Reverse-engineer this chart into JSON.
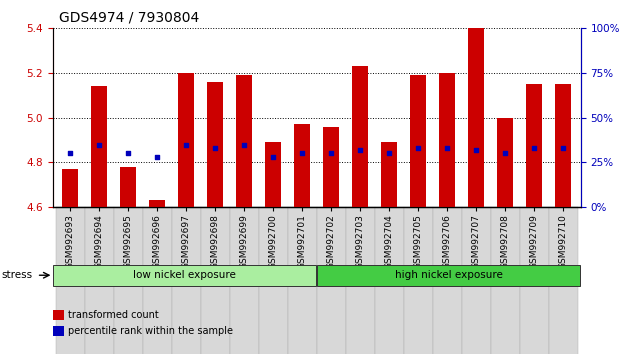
{
  "title": "GDS4974 / 7930804",
  "samples": [
    "GSM992693",
    "GSM992694",
    "GSM992695",
    "GSM992696",
    "GSM992697",
    "GSM992698",
    "GSM992699",
    "GSM992700",
    "GSM992701",
    "GSM992702",
    "GSM992703",
    "GSM992704",
    "GSM992705",
    "GSM992706",
    "GSM992707",
    "GSM992708",
    "GSM992709",
    "GSM992710"
  ],
  "bar_values": [
    4.77,
    5.14,
    4.78,
    4.63,
    5.2,
    5.16,
    5.19,
    4.89,
    4.97,
    4.96,
    5.23,
    4.89,
    5.19,
    5.2,
    5.4,
    5.0,
    5.15,
    5.15
  ],
  "blue_pct": [
    30,
    35,
    30,
    28,
    35,
    33,
    35,
    28,
    30,
    30,
    32,
    30,
    33,
    33,
    32,
    30,
    33,
    33
  ],
  "ylim_left": [
    4.6,
    5.4
  ],
  "ylim_right": [
    0,
    100
  ],
  "yticks_left": [
    4.6,
    4.8,
    5.0,
    5.2,
    5.4
  ],
  "yticks_right": [
    0,
    25,
    50,
    75,
    100
  ],
  "bar_color": "#cc0000",
  "blue_color": "#0000bb",
  "bar_bottom": 4.6,
  "groups": [
    {
      "label": "low nickel exposure",
      "start": 0,
      "end": 9,
      "color": "#aaeea0"
    },
    {
      "label": "high nickel exposure",
      "start": 9,
      "end": 18,
      "color": "#44cc44"
    }
  ],
  "stress_label": "stress",
  "legend_items": [
    {
      "label": "transformed count",
      "color": "#cc0000"
    },
    {
      "label": "percentile rank within the sample",
      "color": "#0000bb"
    }
  ],
  "left_axis_color": "#cc0000",
  "right_axis_color": "#0000bb",
  "title_fontsize": 10,
  "tick_fontsize": 6.5,
  "bar_width": 0.55
}
